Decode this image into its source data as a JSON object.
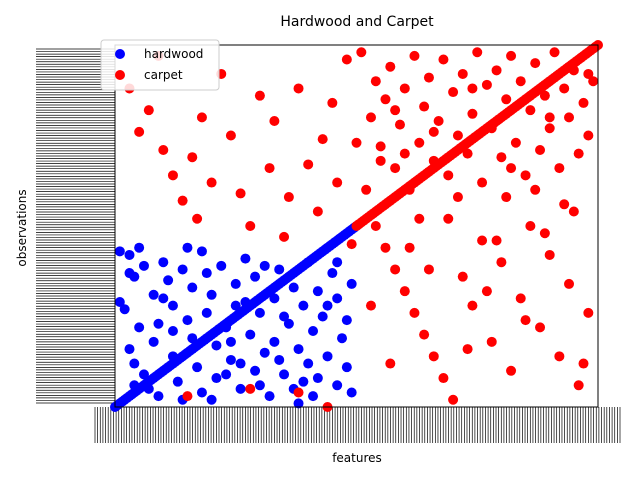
{
  "chart_data": {
    "type": "scatter",
    "title": "Hardwood and Carpet",
    "xlabel": "features",
    "ylabel": "observations",
    "xlim": [
      0,
      100
    ],
    "ylim": [
      0,
      100
    ],
    "grid": false,
    "legend_position": "top-left",
    "series": [
      {
        "name": "hardwood",
        "color": "#0000ff",
        "diagonal_range": [
          0,
          50
        ],
        "points": [
          [
            1,
            43
          ],
          [
            1,
            29
          ],
          [
            2,
            27
          ],
          [
            3,
            37
          ],
          [
            3,
            42
          ],
          [
            4,
            36
          ],
          [
            5,
            44
          ],
          [
            6,
            39
          ],
          [
            5,
            22
          ],
          [
            3,
            16
          ],
          [
            4,
            12
          ],
          [
            6,
            9
          ],
          [
            8,
            18
          ],
          [
            9,
            23
          ],
          [
            10,
            40
          ],
          [
            10,
            30
          ],
          [
            11,
            35
          ],
          [
            12,
            28
          ],
          [
            12,
            14
          ],
          [
            13,
            7
          ],
          [
            14,
            38
          ],
          [
            15,
            24
          ],
          [
            16,
            19
          ],
          [
            16,
            33
          ],
          [
            17,
            11
          ],
          [
            18,
            4
          ],
          [
            18,
            43
          ],
          [
            19,
            26
          ],
          [
            20,
            31
          ],
          [
            21,
            17
          ],
          [
            21,
            8
          ],
          [
            22,
            39
          ],
          [
            23,
            22
          ],
          [
            24,
            13
          ],
          [
            25,
            34
          ],
          [
            25,
            28
          ],
          [
            26,
            5
          ],
          [
            27,
            41
          ],
          [
            28,
            20
          ],
          [
            29,
            10
          ],
          [
            29,
            36
          ],
          [
            30,
            26
          ],
          [
            31,
            15
          ],
          [
            32,
            3
          ],
          [
            33,
            30
          ],
          [
            33,
            18
          ],
          [
            34,
            38
          ],
          [
            35,
            9
          ],
          [
            36,
            23
          ],
          [
            37,
            33
          ],
          [
            37,
            5
          ],
          [
            38,
            16
          ],
          [
            39,
            28
          ],
          [
            40,
            12
          ],
          [
            40,
            40
          ],
          [
            41,
            21
          ],
          [
            42,
            8
          ],
          [
            42,
            32
          ],
          [
            43,
            25
          ],
          [
            44,
            14
          ],
          [
            45,
            37
          ],
          [
            46,
            6
          ],
          [
            46,
            30
          ],
          [
            47,
            19
          ],
          [
            48,
            11
          ],
          [
            48,
            24
          ],
          [
            49,
            34
          ],
          [
            49,
            4
          ],
          [
            7,
            5
          ],
          [
            9,
            3
          ],
          [
            14,
            2
          ],
          [
            20,
            2
          ],
          [
            26,
            12
          ],
          [
            30,
            6
          ],
          [
            35,
            25
          ],
          [
            38,
            1
          ],
          [
            41,
            3
          ],
          [
            44,
            28
          ],
          [
            12,
            21
          ],
          [
            27,
            29
          ],
          [
            8,
            31
          ],
          [
            19,
            37
          ],
          [
            23,
            9
          ],
          [
            34,
            13
          ],
          [
            15,
            44
          ],
          [
            4,
            6
          ],
          [
            39,
            7
          ],
          [
            46,
            40
          ],
          [
            31,
            39
          ],
          [
            24,
            18
          ]
        ]
      },
      {
        "name": "carpet",
        "color": "#ff0000",
        "diagonal_range": [
          50,
          100
        ],
        "points": [
          [
            3,
            88
          ],
          [
            5,
            76
          ],
          [
            7,
            82
          ],
          [
            9,
            97
          ],
          [
            10,
            71
          ],
          [
            12,
            64
          ],
          [
            14,
            57
          ],
          [
            16,
            69
          ],
          [
            17,
            52
          ],
          [
            18,
            80
          ],
          [
            20,
            62
          ],
          [
            22,
            92
          ],
          [
            24,
            75
          ],
          [
            26,
            59
          ],
          [
            28,
            50
          ],
          [
            30,
            86
          ],
          [
            32,
            66
          ],
          [
            33,
            79
          ],
          [
            35,
            47
          ],
          [
            36,
            58
          ],
          [
            38,
            88
          ],
          [
            40,
            67
          ],
          [
            42,
            54
          ],
          [
            43,
            74
          ],
          [
            45,
            84
          ],
          [
            46,
            62
          ],
          [
            48,
            96
          ],
          [
            49,
            45
          ],
          [
            51,
            98
          ],
          [
            53,
            80
          ],
          [
            54,
            90
          ],
          [
            55,
            72
          ],
          [
            56,
            85
          ],
          [
            57,
            94
          ],
          [
            58,
            66
          ],
          [
            59,
            78
          ],
          [
            60,
            88
          ],
          [
            61,
            60
          ],
          [
            62,
            97
          ],
          [
            63,
            73
          ],
          [
            64,
            83
          ],
          [
            65,
            91
          ],
          [
            66,
            68
          ],
          [
            67,
            79
          ],
          [
            68,
            96
          ],
          [
            69,
            64
          ],
          [
            70,
            87
          ],
          [
            71,
            75
          ],
          [
            72,
            92
          ],
          [
            73,
            70
          ],
          [
            74,
            81
          ],
          [
            75,
            98
          ],
          [
            76,
            62
          ],
          [
            77,
            89
          ],
          [
            78,
            77
          ],
          [
            79,
            93
          ],
          [
            80,
            69
          ],
          [
            81,
            85
          ],
          [
            82,
            97
          ],
          [
            83,
            73
          ],
          [
            84,
            90
          ],
          [
            85,
            64
          ],
          [
            86,
            82
          ],
          [
            87,
            95
          ],
          [
            88,
            71
          ],
          [
            89,
            86
          ],
          [
            90,
            77
          ],
          [
            91,
            98
          ],
          [
            92,
            66
          ],
          [
            93,
            88
          ],
          [
            94,
            80
          ],
          [
            95,
            93
          ],
          [
            96,
            70
          ],
          [
            97,
            84
          ],
          [
            98,
            75
          ],
          [
            99,
            90
          ],
          [
            52,
            60
          ],
          [
            54,
            50
          ],
          [
            56,
            44
          ],
          [
            58,
            38
          ],
          [
            60,
            32
          ],
          [
            62,
            26
          ],
          [
            64,
            20
          ],
          [
            66,
            14
          ],
          [
            68,
            8
          ],
          [
            70,
            2
          ],
          [
            72,
            36
          ],
          [
            74,
            28
          ],
          [
            76,
            46
          ],
          [
            78,
            18
          ],
          [
            80,
            40
          ],
          [
            82,
            10
          ],
          [
            84,
            30
          ],
          [
            86,
            50
          ],
          [
            88,
            22
          ],
          [
            90,
            42
          ],
          [
            92,
            14
          ],
          [
            94,
            34
          ],
          [
            96,
            6
          ],
          [
            98,
            26
          ],
          [
            53,
            28
          ],
          [
            57,
            12
          ],
          [
            61,
            44
          ],
          [
            65,
            38
          ],
          [
            69,
            52
          ],
          [
            73,
            16
          ],
          [
            77,
            32
          ],
          [
            81,
            58
          ],
          [
            85,
            24
          ],
          [
            89,
            48
          ],
          [
            93,
            56
          ],
          [
            97,
            12
          ],
          [
            15,
            3
          ],
          [
            28,
            5
          ],
          [
            38,
            4
          ],
          [
            44,
            0
          ],
          [
            55,
            68
          ],
          [
            63,
            52
          ],
          [
            71,
            58
          ],
          [
            79,
            46
          ],
          [
            87,
            60
          ],
          [
            95,
            54
          ],
          [
            50,
            73
          ],
          [
            58,
            82
          ],
          [
            66,
            76
          ],
          [
            74,
            88
          ],
          [
            82,
            66
          ],
          [
            90,
            80
          ],
          [
            98,
            92
          ],
          [
            60,
            70
          ]
        ]
      }
    ]
  }
}
